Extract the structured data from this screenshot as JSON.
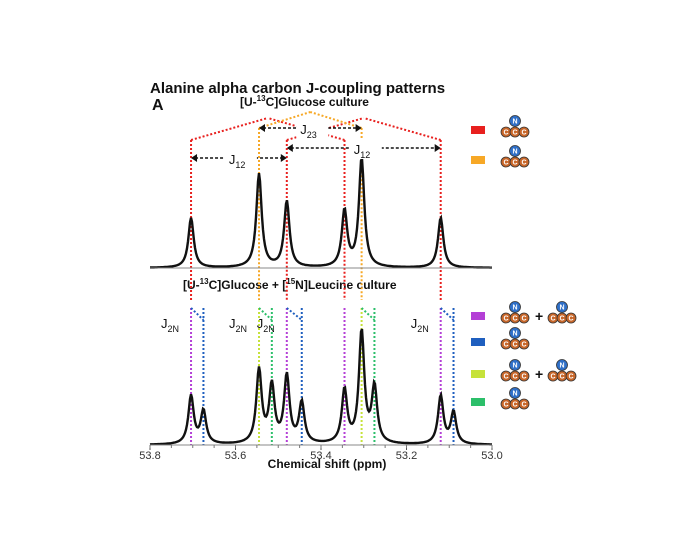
{
  "chart_data": {
    "type": "line",
    "title": "Alanine alpha carbon J-coupling patterns",
    "panel_label": "A",
    "xlabel": "Chemical shift (ppm)",
    "xlim": [
      53.8,
      53.0
    ],
    "x_ticks": [
      "53.8",
      "53.6",
      "53.4",
      "53.2",
      "53.0"
    ],
    "panels": [
      {
        "name": "[U-13C]Glucose culture",
        "title_parts": {
          "pre": "[U-",
          "sup": "13",
          "post": "C]Glucose culture"
        },
        "peaks": [
          {
            "ppm": 53.704,
            "height": 0.4
          },
          {
            "ppm": 53.545,
            "height": 0.75
          },
          {
            "ppm": 53.48,
            "height": 0.53
          },
          {
            "ppm": 53.345,
            "height": 0.45
          },
          {
            "ppm": 53.305,
            "height": 0.87
          },
          {
            "ppm": 53.12,
            "height": 0.4
          }
        ],
        "couplings": [
          {
            "label": "J",
            "sub": "23",
            "from": 53.545,
            "to": 53.305
          },
          {
            "label": "J",
            "sub": "12",
            "from": 53.704,
            "to": 53.48
          },
          {
            "label": "J",
            "sub": "12",
            "from": 53.48,
            "to": 53.12
          }
        ],
        "legend": [
          {
            "color": "#e8201e",
            "atoms": [
              "N",
              "C",
              "C",
              "C"
            ]
          },
          {
            "color": "#f7a826",
            "atoms": [
              "N",
              "C",
              "C",
              "C"
            ]
          }
        ]
      },
      {
        "name": "[U-13C]Glucose + [15N]Leucine culture",
        "title_parts": {
          "pre": "[U-",
          "sup": "13",
          "mid": "C]Glucose + [",
          "sup2": "15",
          "post": "N]Leucine culture"
        },
        "peaks": [
          {
            "ppm": 53.704,
            "height": 0.38
          },
          {
            "ppm": 53.675,
            "height": 0.26
          },
          {
            "ppm": 53.545,
            "height": 0.58
          },
          {
            "ppm": 53.515,
            "height": 0.45
          },
          {
            "ppm": 53.48,
            "height": 0.53
          },
          {
            "ppm": 53.445,
            "height": 0.32
          },
          {
            "ppm": 53.345,
            "height": 0.42
          },
          {
            "ppm": 53.305,
            "height": 0.88
          },
          {
            "ppm": 53.275,
            "height": 0.44
          },
          {
            "ppm": 53.12,
            "height": 0.38
          },
          {
            "ppm": 53.09,
            "height": 0.25
          }
        ],
        "couplings": [
          {
            "label": "J",
            "sub": "2N",
            "from": 53.704,
            "to": 53.675
          },
          {
            "label": "J",
            "sub": "2N",
            "from": 53.545,
            "to": 53.515
          },
          {
            "label": "J",
            "sub": "2N",
            "from": 53.48,
            "to": 53.445
          },
          {
            "label": "J",
            "sub": "2N",
            "from": 53.12,
            "to": 53.09
          }
        ],
        "legend": [
          {
            "color": "#b43fd6",
            "atoms": [
              "N",
              "C",
              "C",
              "C"
            ],
            "plus": true
          },
          {
            "color": "#1f5fbf",
            "atoms": [
              "N",
              "C",
              "C",
              "C"
            ]
          },
          {
            "color": "#c6e23a",
            "atoms": [
              "N",
              "C",
              "C",
              "C"
            ],
            "plus": true
          },
          {
            "color": "#2cbf6a",
            "atoms": [
              "N",
              "C",
              "C",
              "C"
            ]
          }
        ]
      }
    ],
    "colors": {
      "red": "#e8201e",
      "orange": "#f7a826",
      "purple": "#b43fd6",
      "blue": "#1f5fbf",
      "yellow_green": "#c6e23a",
      "green": "#2cbf6a",
      "carbon_fill": "#c8672a",
      "nitrogen_fill": "#2f6fc7"
    },
    "grid": false
  }
}
